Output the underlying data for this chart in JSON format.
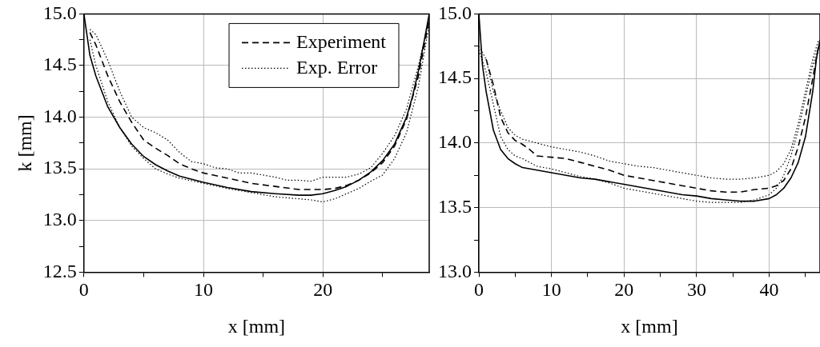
{
  "chart_data": [
    {
      "type": "line",
      "xlabel": "x [mm]",
      "ylabel": "k [mm]",
      "xlim": [
        0,
        28.9
      ],
      "ylim": [
        12.5,
        15.0
      ],
      "xticks": [
        0,
        {
          "value": 5,
          "label": null
        },
        10,
        {
          "value": 15,
          "label": null
        },
        20,
        {
          "value": 25,
          "label": null
        }
      ],
      "yticks": [
        {
          "value": 12.5,
          "label": "12.5"
        },
        {
          "value": 12.75,
          "label": null
        },
        {
          "value": 13,
          "label": "13.0"
        },
        {
          "value": 13.25,
          "label": null
        },
        {
          "value": 13.5,
          "label": "13.5"
        },
        {
          "value": 13.75,
          "label": null
        },
        {
          "value": 14,
          "label": "14.0"
        },
        {
          "value": 14.25,
          "label": null
        },
        {
          "value": 14.5,
          "label": "14.5"
        },
        {
          "value": 14.75,
          "label": null
        },
        {
          "value": 15,
          "label": "15.0"
        }
      ],
      "grid": true,
      "legend": "top right",
      "marker": "none",
      "series": [
        {
          "color": "#000000",
          "line_style": "solid",
          "x": [
            0,
            0.5,
            1,
            2,
            3,
            4,
            5,
            6,
            7,
            8,
            10,
            12,
            14,
            16,
            18,
            19,
            20,
            21,
            22,
            23,
            24,
            25,
            26,
            27,
            27.5,
            28,
            28.5,
            28.9
          ],
          "values": [
            15.0,
            14.6,
            14.4,
            14.1,
            13.9,
            13.74,
            13.62,
            13.54,
            13.48,
            13.43,
            13.37,
            13.32,
            13.28,
            13.26,
            13.245,
            13.245,
            13.26,
            13.29,
            13.33,
            13.39,
            13.47,
            13.58,
            13.74,
            14.0,
            14.2,
            14.45,
            14.75,
            15.0
          ]
        },
        {
          "name": "Experiment",
          "color": "#000000",
          "line_style": "dashed",
          "x": [
            0.5,
            1,
            2,
            3,
            4,
            5,
            6,
            7,
            8,
            9,
            10,
            12,
            14,
            16,
            18,
            20,
            21,
            22,
            23,
            24,
            25,
            26,
            27,
            28,
            28.5,
            28.9
          ],
          "values": [
            14.82,
            14.7,
            14.4,
            14.15,
            13.95,
            13.78,
            13.7,
            13.63,
            13.55,
            13.5,
            13.46,
            13.41,
            13.36,
            13.33,
            13.3,
            13.3,
            13.31,
            13.34,
            13.39,
            13.46,
            13.56,
            13.72,
            13.98,
            14.4,
            14.7,
            14.95
          ]
        },
        {
          "name": "Exp. Error",
          "color": "#000000",
          "line_style": "dotted",
          "x": [
            0.5,
            1,
            2,
            3,
            4,
            5,
            6,
            7,
            8,
            9,
            10,
            11,
            12,
            13,
            14,
            15,
            16,
            17,
            18,
            19,
            20,
            22,
            23,
            24,
            25,
            26,
            27,
            28,
            28.9
          ],
          "values": [
            14.85,
            14.8,
            14.55,
            14.25,
            14.0,
            13.9,
            13.85,
            13.78,
            13.66,
            13.57,
            13.55,
            13.51,
            13.5,
            13.46,
            13.46,
            13.44,
            13.42,
            13.39,
            13.39,
            13.38,
            13.42,
            13.42,
            13.45,
            13.51,
            13.65,
            13.82,
            14.08,
            14.5,
            14.95
          ]
        },
        {
          "color": "#000000",
          "line_style": "dotted",
          "x": [
            0.5,
            1,
            2,
            3,
            4,
            5,
            6,
            7,
            8,
            10,
            12,
            14,
            16,
            18,
            19,
            20,
            21,
            22,
            23,
            24,
            25,
            26,
            27,
            28,
            28.9
          ],
          "values": [
            14.75,
            14.5,
            14.15,
            13.9,
            13.72,
            13.6,
            13.5,
            13.45,
            13.41,
            13.36,
            13.31,
            13.27,
            13.23,
            13.21,
            13.2,
            13.18,
            13.21,
            13.26,
            13.31,
            13.38,
            13.44,
            13.6,
            13.85,
            14.3,
            14.9
          ]
        }
      ]
    },
    {
      "type": "line",
      "xlabel": "x [mm]",
      "xlim": [
        0,
        47
      ],
      "ylim": [
        13.0,
        15.0
      ],
      "xticks": [
        0,
        {
          "value": 5,
          "label": null
        },
        10,
        {
          "value": 15,
          "label": null
        },
        20,
        {
          "value": 25,
          "label": null
        },
        30,
        {
          "value": 35,
          "label": null
        },
        40,
        {
          "value": 45,
          "label": null
        }
      ],
      "yticks": [
        {
          "value": 13,
          "label": "13.0"
        },
        {
          "value": 13.25,
          "label": null
        },
        {
          "value": 13.5,
          "label": "13.5"
        },
        {
          "value": 13.75,
          "label": null
        },
        {
          "value": 14,
          "label": "14.0"
        },
        {
          "value": 14.25,
          "label": null
        },
        {
          "value": 14.5,
          "label": "14.5"
        },
        {
          "value": 14.75,
          "label": null
        },
        {
          "value": 15,
          "label": "15.0"
        }
      ],
      "grid": true,
      "marker": "none",
      "series": [
        {
          "color": "#000000",
          "line_style": "solid",
          "x": [
            0,
            0.5,
            1,
            2,
            3,
            4,
            5,
            6,
            8,
            10,
            12,
            14,
            16,
            18,
            20,
            22,
            24,
            26,
            28,
            30,
            32,
            34,
            36,
            38,
            40,
            41,
            42,
            43,
            44,
            45,
            46,
            46.5,
            47
          ],
          "values": [
            15.0,
            14.6,
            14.4,
            14.1,
            13.95,
            13.88,
            13.84,
            13.81,
            13.79,
            13.77,
            13.75,
            13.73,
            13.72,
            13.7,
            13.68,
            13.66,
            13.64,
            13.62,
            13.6,
            13.59,
            13.57,
            13.56,
            13.55,
            13.55,
            13.57,
            13.6,
            13.65,
            13.73,
            13.85,
            14.05,
            14.4,
            14.65,
            14.8
          ]
        },
        {
          "color": "#000000",
          "line_style": "dashed",
          "x": [
            1,
            2,
            3,
            4,
            5,
            6,
            7,
            8,
            10,
            12,
            14,
            16,
            18,
            20,
            22,
            24,
            26,
            28,
            30,
            32,
            34,
            36,
            38,
            40,
            41,
            42,
            43,
            44,
            45,
            46,
            46.8
          ],
          "values": [
            14.65,
            14.45,
            14.2,
            14.08,
            14.02,
            13.99,
            13.95,
            13.9,
            13.89,
            13.88,
            13.85,
            13.82,
            13.79,
            13.75,
            13.73,
            13.71,
            13.69,
            13.67,
            13.65,
            13.63,
            13.62,
            13.62,
            13.64,
            13.65,
            13.67,
            13.71,
            13.8,
            13.97,
            14.2,
            14.5,
            14.75
          ]
        },
        {
          "color": "#000000",
          "line_style": "dotted",
          "x": [
            0,
            1,
            2,
            3,
            4,
            5,
            6,
            8,
            10,
            12,
            14,
            16,
            18,
            20,
            22,
            24,
            26,
            28,
            30,
            32,
            34,
            36,
            38,
            40,
            41,
            42,
            43,
            44,
            45,
            46,
            46.8
          ],
          "values": [
            14.75,
            14.65,
            14.4,
            14.25,
            14.12,
            14.06,
            14.03,
            14.0,
            13.97,
            13.95,
            13.93,
            13.9,
            13.86,
            13.84,
            13.82,
            13.81,
            13.79,
            13.77,
            13.75,
            13.73,
            13.72,
            13.72,
            13.73,
            13.75,
            13.78,
            13.84,
            13.95,
            14.15,
            14.4,
            14.65,
            14.8
          ]
        },
        {
          "color": "#000000",
          "line_style": "dotted",
          "x": [
            0,
            1,
            2,
            3,
            4,
            5,
            6,
            8,
            10,
            12,
            14,
            16,
            18,
            20,
            22,
            24,
            26,
            28,
            30,
            32,
            34,
            36,
            38,
            40,
            41,
            42,
            43,
            44,
            45,
            46,
            46.8
          ],
          "values": [
            14.72,
            14.55,
            14.3,
            14.05,
            13.95,
            13.9,
            13.88,
            13.82,
            13.8,
            13.77,
            13.74,
            13.72,
            13.69,
            13.65,
            13.63,
            13.61,
            13.59,
            13.57,
            13.55,
            13.54,
            13.54,
            13.54,
            13.56,
            13.6,
            13.65,
            13.75,
            13.9,
            14.1,
            14.35,
            14.6,
            14.75
          ]
        }
      ]
    }
  ]
}
